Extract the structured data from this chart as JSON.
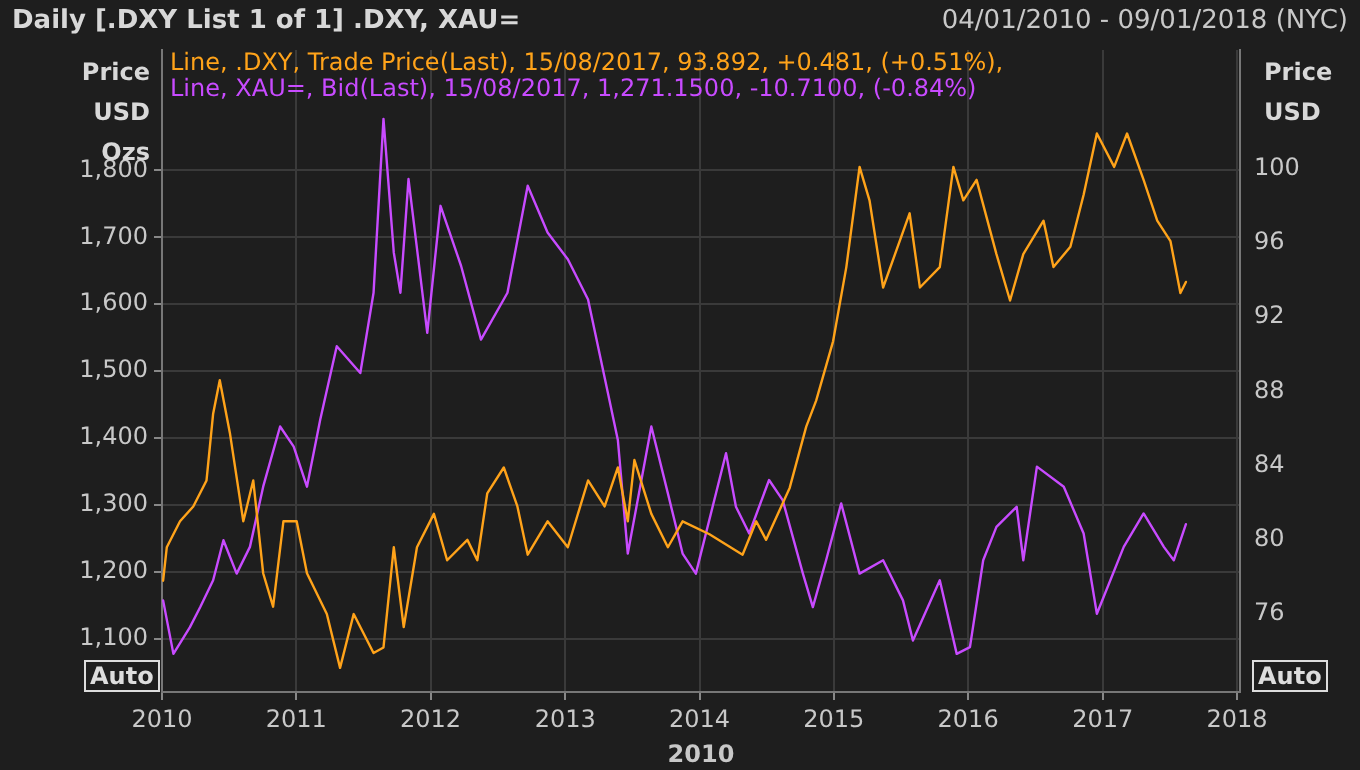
{
  "chart_data": {
    "type": "line",
    "title": "Daily [.DXY List 1 of 1] .DXY, XAU=",
    "subtitle": "04/01/2010 - 09/01/2018 (NYC)",
    "ylabel": "Price USD Ozs",
    "y2label": "Price USD",
    "xlabel": "2010",
    "annotations": [
      "Auto",
      "Auto"
    ],
    "xlim": [
      "2010-01-01",
      "2018-01-09"
    ],
    "xticks": [
      "2010",
      "2011",
      "2012",
      "2013",
      "2014",
      "2015",
      "2016",
      "2017",
      "2018"
    ],
    "ylim": [
      1020,
      1980
    ],
    "yticks": [
      {
        "value": 1100,
        "label": "1,100"
      },
      {
        "value": 1200,
        "label": "1,200"
      },
      {
        "value": 1300,
        "label": "1,300"
      },
      {
        "value": 1400,
        "label": "1,400"
      },
      {
        "value": 1500,
        "label": "1,500"
      },
      {
        "value": 1600,
        "label": "1,600"
      },
      {
        "value": 1700,
        "label": "1,700"
      },
      {
        "value": 1800,
        "label": "1,800"
      }
    ],
    "y2lim": [
      71.8,
      106.4
    ],
    "y2ticks": [
      76,
      80,
      84,
      88,
      92,
      96,
      100
    ],
    "grid": true,
    "legend": "top left",
    "marker": "none",
    "line_style": "solid",
    "series": [
      {
        "name": "Line, .DXY, Trade Price(Last), 15/08/2017, 93.892, +0.481, (+0.51%),",
        "color": "#ffa31a",
        "axis": "y2",
        "x": [
          "2010-01-04",
          "2010-01-14",
          "2010-02-19",
          "2010-03-27",
          "2010-05-02",
          "2010-05-20",
          "2010-06-07",
          "2010-07-05",
          "2010-08-10",
          "2010-09-06",
          "2010-10-03",
          "2010-10-30",
          "2010-11-27",
          "2011-01-02",
          "2011-01-30",
          "2011-03-25",
          "2011-04-30",
          "2011-06-06",
          "2011-07-30",
          "2011-08-26",
          "2011-09-23",
          "2011-10-20",
          "2011-11-25",
          "2012-01-10",
          "2012-02-15",
          "2012-04-10",
          "2012-05-07",
          "2012-06-03",
          "2012-07-18",
          "2012-08-24",
          "2012-09-21",
          "2012-11-14",
          "2013-01-08",
          "2013-03-04",
          "2013-04-18",
          "2013-05-24",
          "2013-06-20",
          "2013-07-08",
          "2013-08-23",
          "2013-10-07",
          "2013-11-16",
          "2014-01-28",
          "2014-04-28",
          "2014-06-04",
          "2014-07-01",
          "2014-09-03",
          "2014-10-18",
          "2014-11-14",
          "2014-12-30",
          "2015-02-04",
          "2015-03-12",
          "2015-04-08",
          "2015-05-15",
          "2015-07-26",
          "2015-08-23",
          "2015-10-16",
          "2015-11-22",
          "2015-12-19",
          "2016-01-24",
          "2016-03-18",
          "2016-04-24",
          "2016-05-30",
          "2016-07-24",
          "2016-08-20",
          "2016-10-05",
          "2016-11-10",
          "2016-12-16",
          "2017-02-01",
          "2017-03-08",
          "2017-04-22",
          "2017-05-29",
          "2017-07-04",
          "2017-07-31",
          "2017-08-15"
        ],
        "values": [
          77.8,
          79.6,
          81.0,
          81.8,
          83.2,
          86.8,
          88.6,
          85.7,
          81.0,
          83.2,
          78.2,
          76.4,
          81.0,
          81.0,
          78.2,
          76.0,
          73.1,
          76.0,
          73.9,
          74.2,
          79.6,
          75.3,
          79.6,
          81.4,
          78.9,
          80.0,
          78.9,
          82.5,
          83.9,
          81.8,
          79.2,
          81.0,
          79.6,
          83.2,
          81.8,
          83.9,
          81.0,
          84.3,
          81.4,
          79.6,
          81.0,
          80.3,
          79.2,
          81.0,
          80.0,
          82.8,
          86.1,
          87.5,
          90.7,
          94.7,
          100.1,
          98.3,
          93.6,
          97.6,
          93.6,
          94.7,
          100.1,
          98.3,
          99.4,
          95.4,
          92.9,
          95.4,
          97.2,
          94.7,
          95.8,
          98.6,
          101.9,
          100.1,
          101.9,
          99.4,
          97.2,
          96.1,
          93.3,
          93.9
        ]
      },
      {
        "name": "Line, XAU=, Bid(Last), 15/08/2017, 1,271.1500, -10.7100, (-0.84%)",
        "color": "#c84bff",
        "x": [
          "2010-01-04",
          "2010-02-01",
          "2010-03-18",
          "2010-04-15",
          "2010-05-20",
          "2010-06-17",
          "2010-07-23",
          "2010-08-28",
          "2010-10-03",
          "2010-11-18",
          "2010-12-25",
          "2011-01-30",
          "2011-03-07",
          "2011-04-21",
          "2011-06-24",
          "2011-07-30",
          "2011-08-26",
          "2011-09-23",
          "2011-10-11",
          "2011-11-02",
          "2011-12-23",
          "2012-01-28",
          "2012-03-24",
          "2012-05-17",
          "2012-07-28",
          "2012-09-21",
          "2012-11-14",
          "2013-01-08",
          "2013-03-04",
          "2013-04-27",
          "2013-05-24",
          "2013-06-20",
          "2013-08-23",
          "2013-10-07",
          "2013-11-16",
          "2013-12-22",
          "2014-03-14",
          "2014-04-10",
          "2014-05-16",
          "2014-07-09",
          "2014-08-15",
          "2014-10-09",
          "2014-11-05",
          "2014-12-11",
          "2015-01-21",
          "2015-03-12",
          "2015-05-15",
          "2015-07-08",
          "2015-08-04",
          "2015-10-16",
          "2015-12-01",
          "2016-01-06",
          "2016-02-11",
          "2016-03-18",
          "2016-05-12",
          "2016-05-30",
          "2016-07-06",
          "2016-09-17",
          "2016-11-10",
          "2016-12-16",
          "2017-02-27",
          "2017-04-22",
          "2017-06-16",
          "2017-07-13",
          "2017-08-15"
        ],
        "values": [
          1157,
          1077,
          1117,
          1147,
          1187,
          1247,
          1197,
          1237,
          1327,
          1417,
          1387,
          1327,
          1427,
          1537,
          1497,
          1617,
          1877,
          1677,
          1617,
          1787,
          1557,
          1747,
          1657,
          1547,
          1617,
          1777,
          1707,
          1667,
          1607,
          1467,
          1397,
          1227,
          1417,
          1317,
          1227,
          1197,
          1377,
          1297,
          1257,
          1337,
          1307,
          1197,
          1147,
          1217,
          1302,
          1197,
          1217,
          1157,
          1097,
          1187,
          1077,
          1087,
          1217,
          1267,
          1297,
          1217,
          1357,
          1327,
          1257,
          1137,
          1237,
          1287,
          1237,
          1217,
          1271
        ]
      }
    ]
  }
}
